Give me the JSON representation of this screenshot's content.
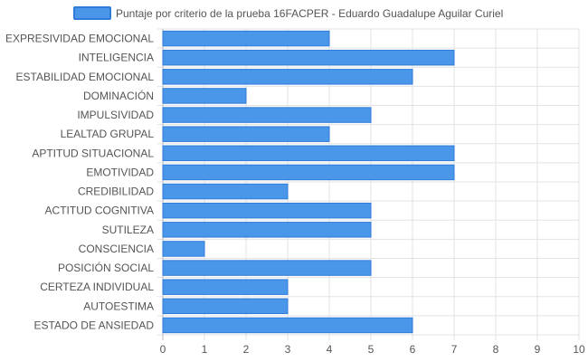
{
  "chart_data": {
    "type": "bar",
    "orientation": "horizontal",
    "legend_position": "top",
    "grid": true,
    "series": [
      {
        "name": "Puntaje por criterio de la prueba 16FACPER - Eduardo Guadalupe Aguilar Curiel",
        "color": "#4a97ea",
        "border_color": "#2f7bd9",
        "values": [
          4,
          7,
          6,
          2,
          5,
          4,
          7,
          7,
          3,
          5,
          5,
          1,
          5,
          3,
          3,
          6
        ]
      }
    ],
    "categories": [
      "EXPRESIVIDAD EMOCIONAL",
      "INTELIGENCIA",
      "ESTABILIDAD EMOCIONAL",
      "DOMINACIÓN",
      "IMPULSIVIDAD",
      "LEALTAD GRUPAL",
      "APTITUD SITUACIONAL",
      "EMOTIVIDAD",
      "CREDIBILIDAD",
      "ACTITUD COGNITIVA",
      "SUTILEZA",
      "CONSCIENCIA",
      "POSICIÓN SOCIAL",
      "CERTEZA INDIVIDUAL",
      "AUTOESTIMA",
      "ESTADO DE ANSIEDAD"
    ],
    "xlim": [
      0,
      10
    ],
    "xticks": [
      0,
      1,
      2,
      3,
      4,
      5,
      6,
      7,
      8,
      9,
      10
    ]
  }
}
